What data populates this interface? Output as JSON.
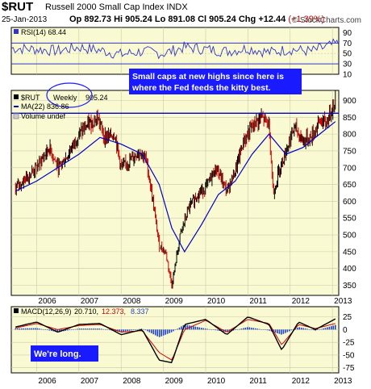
{
  "header": {
    "symbol": "$RUT",
    "name": "Russell 2000 Small Cap Index",
    "exchange": "INDX",
    "date": "25-Jan-2013",
    "open_label": "Op",
    "open": "892.73",
    "high_label": "Hi",
    "high": "905.24",
    "low_label": "Lo",
    "low": "891.08",
    "close_label": "Cl",
    "close": "905.24",
    "change_label": "Chg",
    "change": "+12.44",
    "change_pct": "(+1.39%)",
    "brand": "© StockCharts.com"
  },
  "rsi": {
    "label": "RSI(14) 68.44",
    "ylim": [
      10,
      100
    ],
    "ticks": [
      "90",
      "70",
      "50",
      "30",
      "10"
    ],
    "tick_values": [
      90,
      70,
      50,
      30,
      10
    ],
    "overbought": 70,
    "oversold": 30
  },
  "price": {
    "legend_symbol": "$RUT",
    "legend_weekly": "Weekly",
    "legend_value": "905.24",
    "ma_label": "MA(22) 836.86",
    "volume_label": "Volume undef",
    "ticks": [
      "900",
      "850",
      "800",
      "750",
      "700",
      "650",
      "600",
      "550",
      "500",
      "450",
      "400",
      "350"
    ],
    "tick_values": [
      900,
      850,
      800,
      750,
      700,
      650,
      600,
      550,
      500,
      450,
      400,
      350
    ],
    "resistance": 862,
    "annotation_line1": "Small caps at new highs since here is",
    "annotation_line2": "where the Fed feeds the kitty best."
  },
  "macd": {
    "label_prefix": "MACD(12,26,9)",
    "macd_value": "20.710,",
    "signal_value": "12.373,",
    "hist_value": "8.337",
    "ticks": [
      "25",
      "0",
      "-25",
      "-50",
      "-75"
    ],
    "tick_values": [
      25,
      0,
      -25,
      -50,
      -75
    ],
    "note": "We're long."
  },
  "x_axis": {
    "years": [
      "2006",
      "2007",
      "2008",
      "2009",
      "2010",
      "2011",
      "2012",
      "2013"
    ],
    "year_values": [
      2006,
      2007,
      2008,
      2009,
      2010,
      2011,
      2012,
      2013
    ]
  },
  "colors": {
    "panel_bg": "#fafad2",
    "rsi_line": "#3333cc",
    "ma_line": "#0000cc",
    "resistance_line": "#0000dd",
    "bar_up": "#000000",
    "bar_down": "#cc0000",
    "macd_line": "#000000",
    "signal_line": "#cc0000",
    "histogram": "#2244cc",
    "annotation_text": "#ffffff",
    "annotation_bg": "#1a1aff"
  },
  "chart_data": {
    "type": "line",
    "series": [
      {
        "name": "$RUT",
        "x": [
          2005.5,
          2006.0,
          2006.3,
          2006.5,
          2006.7,
          2007.0,
          2007.25,
          2007.45,
          2007.6,
          2007.85,
          2008.0,
          2008.2,
          2008.45,
          2008.6,
          2008.75,
          2008.9,
          2009.05,
          2009.2,
          2009.4,
          2009.6,
          2009.8,
          2010.0,
          2010.25,
          2010.5,
          2010.7,
          2010.9,
          2011.1,
          2011.3,
          2011.5,
          2011.6,
          2011.75,
          2011.9,
          2012.1,
          2012.3,
          2012.5,
          2012.7,
          2012.85,
          2013.07
        ],
        "values": [
          640,
          700,
          760,
          700,
          730,
          800,
          830,
          850,
          790,
          800,
          700,
          720,
          750,
          720,
          600,
          470,
          450,
          350,
          500,
          580,
          620,
          640,
          700,
          630,
          690,
          780,
          820,
          850,
          830,
          620,
          700,
          750,
          820,
          780,
          790,
          840,
          830,
          905
        ]
      },
      {
        "name": "MA(22)",
        "x": [
          2005.5,
          2006.0,
          2006.5,
          2007.0,
          2007.5,
          2008.0,
          2008.5,
          2008.9,
          2009.2,
          2009.5,
          2009.9,
          2010.3,
          2010.7,
          2011.1,
          2011.5,
          2011.9,
          2012.3,
          2012.7,
          2013.07
        ],
        "values": [
          630,
          660,
          700,
          740,
          790,
          770,
          740,
          650,
          520,
          450,
          530,
          620,
          660,
          740,
          800,
          740,
          760,
          800,
          837
        ]
      }
    ],
    "rsi_series": {
      "name": "RSI(14)",
      "x": [
        2005.5,
        2006.0,
        2006.5,
        2007.0,
        2007.5,
        2008.0,
        2008.5,
        2009.0,
        2009.5,
        2010.0,
        2010.5,
        2011.0,
        2011.5,
        2012.0,
        2012.5,
        2013.07
      ],
      "values": [
        60,
        58,
        55,
        62,
        56,
        48,
        54,
        50,
        62,
        58,
        54,
        60,
        52,
        58,
        54,
        68
      ]
    },
    "macd_series": {
      "x": [
        2005.5,
        2006.0,
        2006.5,
        2007.0,
        2007.5,
        2008.0,
        2008.5,
        2008.9,
        2009.2,
        2009.5,
        2010.0,
        2010.5,
        2011.0,
        2011.5,
        2011.8,
        2012.2,
        2012.6,
        2013.07
      ],
      "macd": [
        5,
        15,
        -5,
        10,
        12,
        -10,
        0,
        -60,
        -65,
        10,
        20,
        -10,
        25,
        10,
        -40,
        15,
        0,
        21
      ],
      "signal": [
        3,
        12,
        0,
        8,
        10,
        -5,
        -2,
        -45,
        -60,
        0,
        18,
        -5,
        20,
        12,
        -30,
        10,
        2,
        12
      ]
    },
    "xlim": [
      2005.4,
      2013.15
    ],
    "ylim": [
      320,
      930
    ],
    "grid": true
  }
}
